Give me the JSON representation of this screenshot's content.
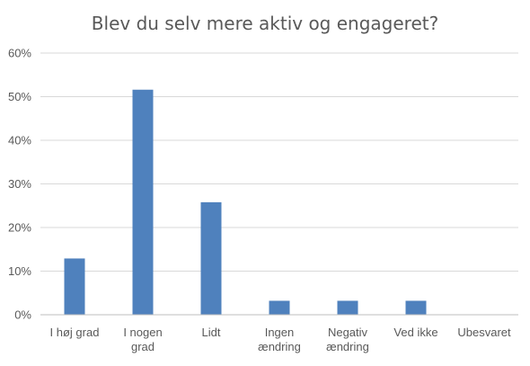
{
  "chart_data": {
    "type": "bar",
    "title": "Blev du selv mere aktiv og engageret?",
    "categories": [
      [
        "I høj grad"
      ],
      [
        "I nogen",
        "grad"
      ],
      [
        "Lidt"
      ],
      [
        "Ingen",
        "ændring"
      ],
      [
        "Negativ",
        "ændring"
      ],
      [
        "Ved ikke"
      ],
      [
        "Ubesvaret"
      ]
    ],
    "values": [
      0.129,
      0.516,
      0.258,
      0.032,
      0.032,
      0.032,
      0.0
    ],
    "ylim": [
      0,
      0.6
    ],
    "yticks": [
      0,
      0.1,
      0.2,
      0.3,
      0.4,
      0.5,
      0.6
    ],
    "ytick_labels": [
      "0%",
      "10%",
      "20%",
      "30%",
      "40%",
      "50%",
      "60%"
    ],
    "xlabel": "",
    "ylabel": "",
    "grid": true,
    "legend": "none",
    "bar_color": "#4f81bd"
  }
}
